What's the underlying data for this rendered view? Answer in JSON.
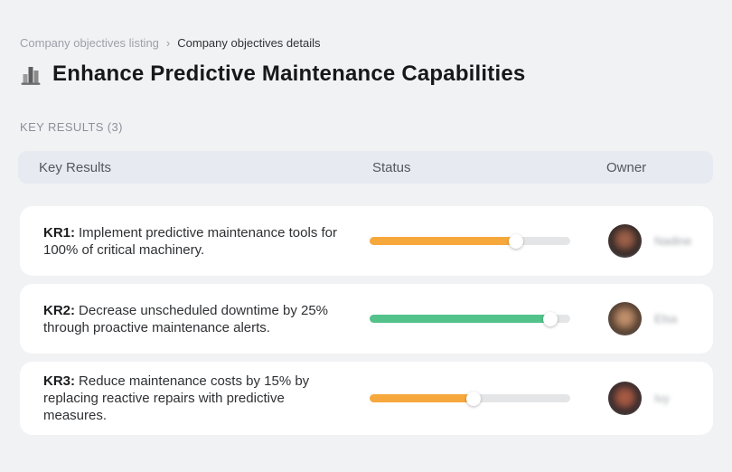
{
  "breadcrumb": {
    "separator": "›",
    "items": [
      {
        "label": "Company objectives listing"
      },
      {
        "label": "Company objectives details"
      }
    ]
  },
  "header": {
    "icon": "buildings-chart-icon",
    "title": "Enhance Predictive Maintenance Capabilities"
  },
  "section": {
    "label": "KEY RESULTS (3)"
  },
  "table": {
    "columns": [
      "Key Results",
      "Status",
      "Owner"
    ],
    "track_color": "#e4e5e7",
    "rows": [
      {
        "kr": "KR1:",
        "text": "Implement predictive maintenance tools for 100% of critical machinery.",
        "progress_percent": 73,
        "progress_color": "#f7a83c",
        "owner": "Nadine"
      },
      {
        "kr": "KR2:",
        "text": "Decrease unscheduled downtime by 25% through proactive maintenance alerts.",
        "progress_percent": 90,
        "progress_color": "#53c28b",
        "owner": "Elsa"
      },
      {
        "kr": "KR3:",
        "text": "Reduce maintenance costs by 15% by replacing reactive repairs with predictive measures.",
        "progress_percent": 52,
        "progress_color": "#f7a83c",
        "owner": "Ivy"
      }
    ]
  },
  "colors": {
    "page_background": "#f1f2f4",
    "table_header_background": "#e7eaf1",
    "card_background": "#ffffff",
    "orange": "#f7a83c",
    "green": "#53c28b"
  }
}
